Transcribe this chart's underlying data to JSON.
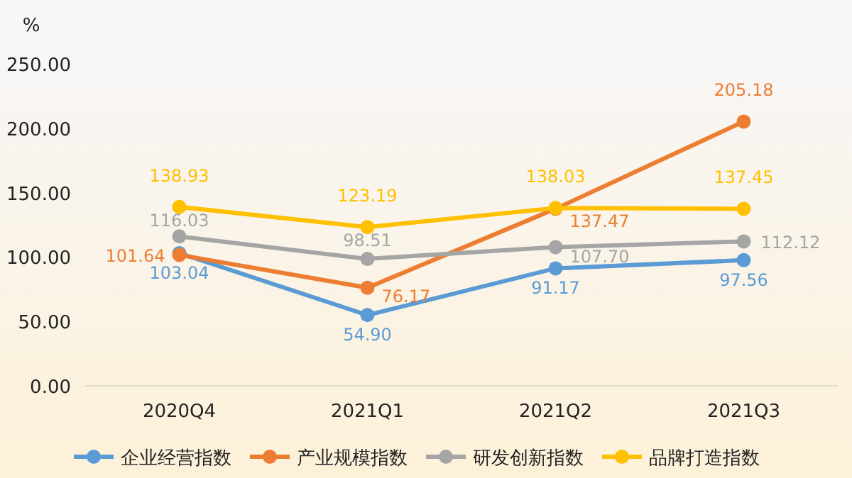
{
  "chart_data": {
    "type": "line",
    "ylabel": "%",
    "categories": [
      "2020Q4",
      "2021Q1",
      "2021Q2",
      "2021Q3"
    ],
    "ylim": [
      0,
      250
    ],
    "yticks": [
      {
        "value": 0,
        "label": "0.00"
      },
      {
        "value": 50,
        "label": "50.00"
      },
      {
        "value": 100,
        "label": "100.00"
      },
      {
        "value": 150,
        "label": "150.00"
      },
      {
        "value": 200,
        "label": "200.00"
      },
      {
        "value": 250,
        "label": "250.00"
      }
    ],
    "grid": false,
    "legend": "bottom",
    "marker": "circle",
    "line_style": "solid",
    "data_labels": true,
    "series": [
      {
        "name": "企业经营指数",
        "color": "#5b9bd5",
        "values": [
          103.04,
          54.9,
          91.17,
          97.56
        ],
        "value_labels": [
          "103.04",
          "54.90",
          "91.17",
          "97.56"
        ]
      },
      {
        "name": "产业规模指数",
        "color": "#ed7d31",
        "values": [
          101.64,
          76.17,
          137.47,
          205.18
        ],
        "value_labels": [
          "101.64",
          "76.17",
          "137.47",
          "205.18"
        ]
      },
      {
        "name": "研发创新指数",
        "color": "#a5a5a5",
        "values": [
          116.03,
          98.51,
          107.7,
          112.12
        ],
        "value_labels": [
          "116.03",
          "98.51",
          "107.70",
          "112.12"
        ]
      },
      {
        "name": "品牌打造指数",
        "color": "#ffc000",
        "values": [
          138.93,
          123.19,
          138.03,
          137.45
        ],
        "value_labels": [
          "138.93",
          "123.19",
          "138.03",
          "137.45"
        ]
      }
    ]
  }
}
